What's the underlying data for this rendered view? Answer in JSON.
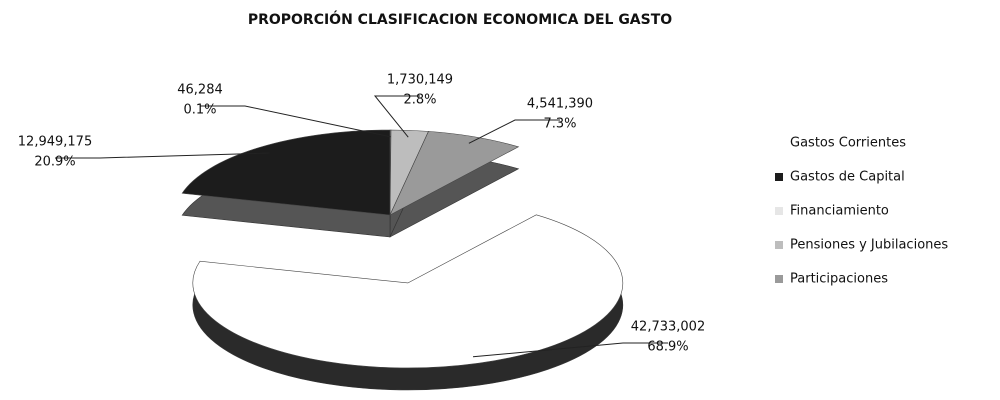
{
  "chart_data": {
    "type": "pie",
    "title": "PROPORCIÓN CLASIFICACION ECONOMICA  DEL GASTO",
    "categories": [
      "Financiamiento",
      "Pensiones y Jubilaciones",
      "Participaciones",
      "Gastos Corrientes",
      "Gastos de Capital"
    ],
    "values": [
      46284,
      1730149,
      4541390,
      42733002,
      12949175
    ],
    "value_labels": [
      "46,284",
      "1,730,149",
      "4,541,390",
      "42,733,002",
      "12,949,175"
    ],
    "percents": [
      0.1,
      2.8,
      7.3,
      68.9,
      20.9
    ],
    "percent_labels": [
      "0.1%",
      "2.8%",
      "7.3%",
      "68.9%",
      "20.9%"
    ],
    "colors": [
      "#e6e6e6",
      "#bdbdbd",
      "#9a9a9a",
      "#ffffff",
      "#1c1c1c"
    ],
    "legend": [
      "Gastos Corrientes",
      "Gastos de Capital",
      "Financiamiento",
      "Pensiones y Jubilaciones",
      "Participaciones"
    ],
    "legend_colors": [
      "#ffffff",
      "#1c1c1c",
      "#e6e6e6",
      "#bdbdbd",
      "#9a9a9a"
    ],
    "legend_position": "right"
  }
}
